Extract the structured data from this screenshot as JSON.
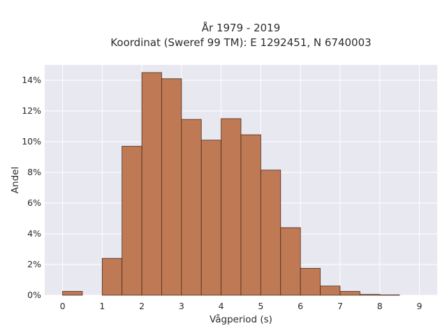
{
  "chart_data": {
    "type": "bar",
    "title_lines": [
      "År 1979 - 2019",
      "Koordinat (Sweref 99 TM): E 1292451, N 6740003"
    ],
    "xlabel": "Vågperiod (s)",
    "ylabel": "Andel",
    "bin_width": 0.5,
    "bins": [
      {
        "start": 0.0,
        "value": 0.25
      },
      {
        "start": 0.5,
        "value": 0.0
      },
      {
        "start": 1.0,
        "value": 2.4
      },
      {
        "start": 1.5,
        "value": 9.7
      },
      {
        "start": 2.0,
        "value": 14.5
      },
      {
        "start": 2.5,
        "value": 14.1
      },
      {
        "start": 3.0,
        "value": 11.45
      },
      {
        "start": 3.5,
        "value": 10.1
      },
      {
        "start": 4.0,
        "value": 11.5
      },
      {
        "start": 4.5,
        "value": 10.45
      },
      {
        "start": 5.0,
        "value": 8.15
      },
      {
        "start": 5.5,
        "value": 4.4
      },
      {
        "start": 6.0,
        "value": 1.75
      },
      {
        "start": 6.5,
        "value": 0.6
      },
      {
        "start": 7.0,
        "value": 0.25
      },
      {
        "start": 7.5,
        "value": 0.05
      },
      {
        "start": 8.0,
        "value": 0.02
      }
    ],
    "xlim": [
      -0.45,
      9.45
    ],
    "ylim": [
      0,
      15
    ],
    "x_ticks": [
      "0",
      "1",
      "2",
      "3",
      "4",
      "5",
      "6",
      "7",
      "8",
      "9"
    ],
    "y_ticks": [
      "0%",
      "2%",
      "4%",
      "6%",
      "8%",
      "10%",
      "12%",
      "14%"
    ],
    "grid": true,
    "colors": {
      "bar_fill": "#bf7a55",
      "bar_edge": "#4a2a1a",
      "plot_background": "#e8e8f0",
      "grid": "#ffffff"
    }
  }
}
